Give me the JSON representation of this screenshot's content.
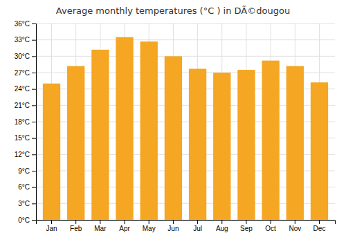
{
  "chart_data": {
    "type": "bar",
    "title": "Average monthly temperatures (°C ) in DÃ©dougou",
    "categories": [
      "Jan",
      "Feb",
      "Mar",
      "Apr",
      "May",
      "Jun",
      "Jul",
      "Aug",
      "Sep",
      "Oct",
      "Nov",
      "Dec"
    ],
    "values": [
      25.0,
      28.2,
      31.2,
      33.5,
      32.7,
      30.0,
      27.7,
      27.0,
      27.5,
      29.2,
      28.2,
      25.2
    ],
    "color": "#F5A623",
    "ylim": [
      0,
      36
    ],
    "yticks": [
      {
        "value": 0,
        "label": "0°C"
      },
      {
        "value": 3,
        "label": "3°C"
      },
      {
        "value": 6,
        "label": "6°C"
      },
      {
        "value": 9,
        "label": "9°C"
      },
      {
        "value": 12,
        "label": "12°C"
      },
      {
        "value": 15,
        "label": "15°C"
      },
      {
        "value": 18,
        "label": "18°C"
      },
      {
        "value": 21,
        "label": "21°C"
      },
      {
        "value": 24,
        "label": "24°C"
      },
      {
        "value": 27,
        "label": "27°C"
      },
      {
        "value": 30,
        "label": "30°C"
      },
      {
        "value": 33,
        "label": "33°C"
      },
      {
        "value": 36,
        "label": "36°C"
      }
    ],
    "grid": true
  }
}
